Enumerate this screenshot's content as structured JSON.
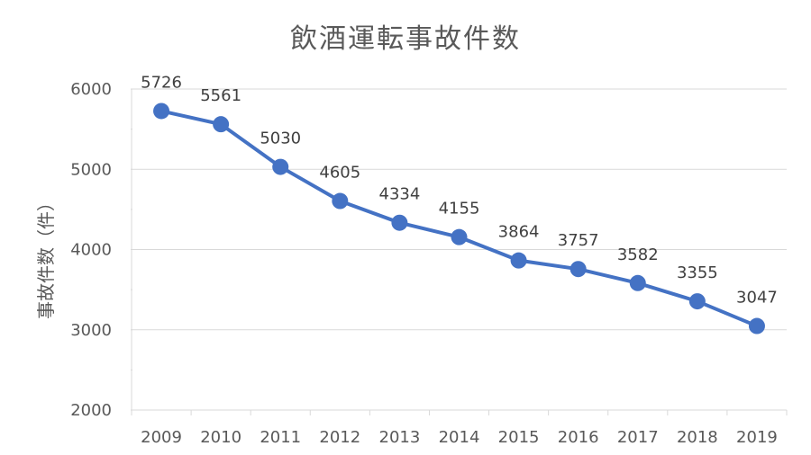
{
  "chart_data": {
    "type": "line",
    "title": "飲酒運転事故件数",
    "xlabel": "",
    "ylabel": "事故件数（件）",
    "categories": [
      "2009",
      "2010",
      "2011",
      "2012",
      "2013",
      "2014",
      "2015",
      "2016",
      "2017",
      "2018",
      "2019"
    ],
    "series": [
      {
        "values": [
          5726,
          5561,
          5030,
          4605,
          4334,
          4155,
          3864,
          3757,
          3582,
          3355,
          3047
        ]
      }
    ],
    "ylim": [
      2000,
      6000
    ],
    "yticks": [
      2000,
      3000,
      4000,
      5000,
      6000
    ],
    "grid": true,
    "color": "#4472C4",
    "gridColor": "#D9D9D9"
  }
}
